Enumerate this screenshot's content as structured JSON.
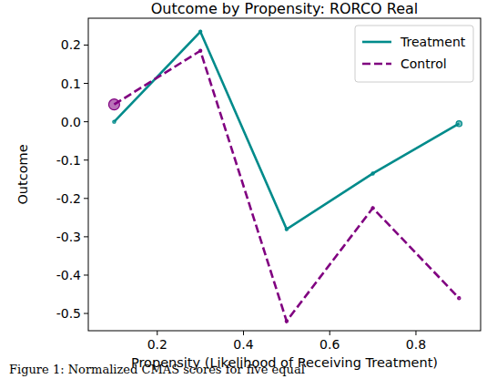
{
  "chart_data": {
    "type": "line",
    "title": "Outcome by Propensity: RORCO Real",
    "x_label": "Propensity (Likelihood of Receiving Treatment)",
    "y_label": "Outcome",
    "caption": "Figure 1: Normalized CMAS scores for five equal",
    "x": [
      0.1,
      0.3,
      0.5,
      0.7,
      0.9
    ],
    "series": [
      {
        "name": "Treatment",
        "color": "#008b8b",
        "line_style": "solid",
        "marker": "circle",
        "values": [
          0.0,
          0.235,
          -0.28,
          -0.135,
          -0.005
        ],
        "sizes": [
          1,
          1,
          1,
          1,
          4
        ]
      },
      {
        "name": "Control",
        "color": "#800080",
        "line_style": "dashed",
        "marker": "circle",
        "values": [
          0.045,
          0.185,
          -0.52,
          -0.225,
          -0.46
        ],
        "sizes": [
          14,
          1,
          1,
          1,
          1
        ]
      }
    ],
    "xlim": [
      0.04,
      0.95
    ],
    "ylim": [
      -0.545,
      0.27
    ],
    "xticks": [
      0.2,
      0.4,
      0.6,
      0.8
    ],
    "yticks": [
      -0.5,
      -0.4,
      -0.3,
      -0.2,
      -0.1,
      {
        "value": 0,
        "label": "0.0"
      },
      0.1,
      0.2
    ],
    "grid": false,
    "legend": "upper right"
  }
}
